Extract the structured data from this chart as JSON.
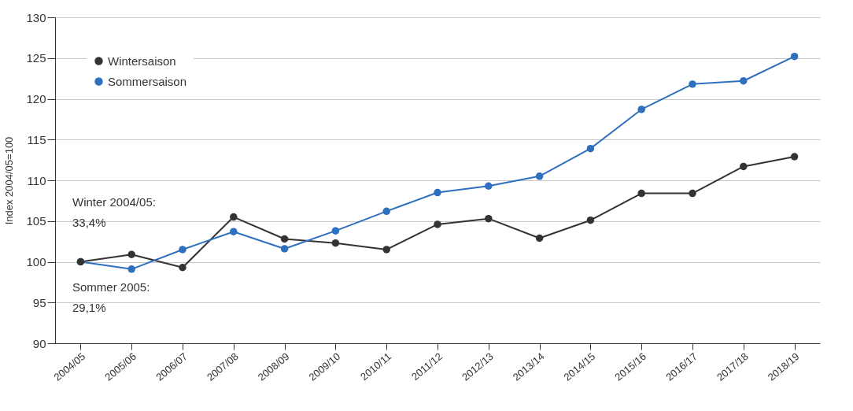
{
  "chart_data": {
    "type": "line",
    "ylabel": "Index 2004/05=100",
    "categories": [
      "2004/05",
      "2005/06",
      "2006/07",
      "2007/08",
      "2008/09",
      "2009/10",
      "2010/11",
      "2011/12",
      "2012/13",
      "2013/14",
      "2014/15",
      "2015/16",
      "2016/17",
      "2017/18",
      "2018/19"
    ],
    "series": [
      {
        "name": "Wintersaison",
        "color": "#333333",
        "values": [
          100,
          100.9,
          99.3,
          105.5,
          102.8,
          102.3,
          101.5,
          104.6,
          105.3,
          102.9,
          105.1,
          108.4,
          108.4,
          111.7,
          112.9
        ]
      },
      {
        "name": "Sommersaison",
        "color": "#2e6fc0",
        "values": [
          100,
          99.1,
          101.5,
          103.7,
          101.6,
          103.8,
          106.2,
          108.5,
          109.3,
          110.5,
          113.9,
          118.7,
          121.8,
          122.2,
          125.2
        ]
      }
    ],
    "ylim": [
      90,
      130
    ],
    "yticks": [
      90,
      95,
      100,
      105,
      110,
      115,
      120,
      125,
      130
    ],
    "grid": "y",
    "legend": "top left",
    "marker": "circle",
    "line_style": "solid",
    "annotations": [
      "Winter 2004/05:\n33,4%",
      "Sommer 2005:\n29,1%"
    ]
  }
}
